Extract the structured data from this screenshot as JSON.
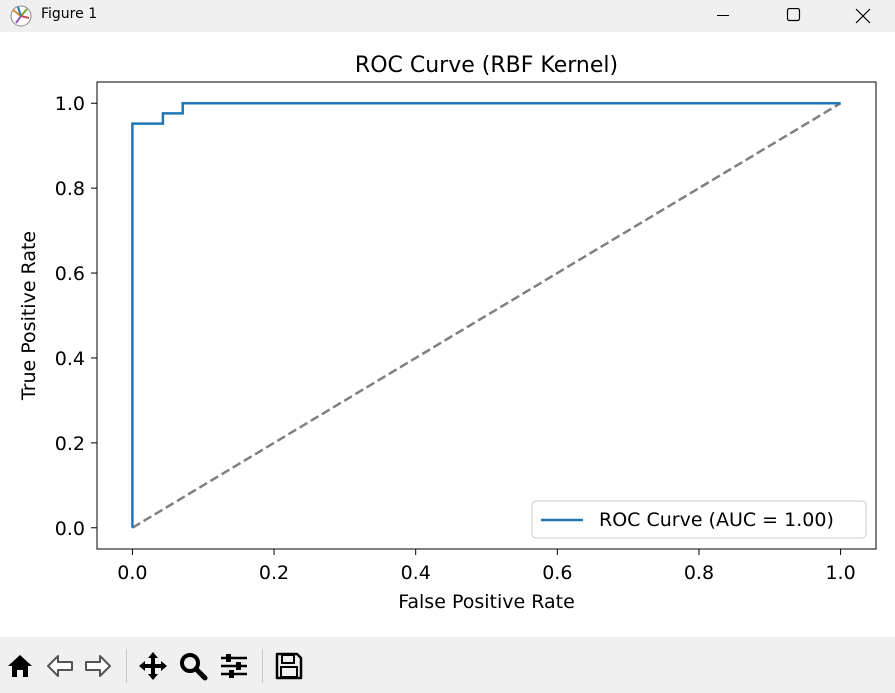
{
  "window": {
    "title": "Figure 1",
    "controls": [
      "minimize",
      "maximize",
      "close"
    ]
  },
  "toolbar": {
    "buttons": [
      "home-icon",
      "back-arrow-icon",
      "forward-arrow-icon",
      "pan-icon",
      "zoom-icon",
      "configure-subplots-icon",
      "save-icon"
    ]
  },
  "chart_data": {
    "type": "line",
    "title": "ROC Curve (RBF Kernel)",
    "xlabel": "False Positive Rate",
    "ylabel": "True Positive Rate",
    "xlim": [
      -0.05,
      1.05
    ],
    "ylim": [
      -0.05,
      1.05
    ],
    "xticks": [
      0.0,
      0.2,
      0.4,
      0.6,
      0.8,
      1.0
    ],
    "yticks": [
      0.0,
      0.2,
      0.4,
      0.6,
      0.8,
      1.0
    ],
    "xtick_labels": [
      "0.0",
      "0.2",
      "0.4",
      "0.6",
      "0.8",
      "1.0"
    ],
    "ytick_labels": [
      "0.0",
      "0.2",
      "0.4",
      "0.6",
      "0.8",
      "1.0"
    ],
    "grid": false,
    "legend_position": "lower-right",
    "series": [
      {
        "name": "ROC Curve (AUC = 1.00)",
        "color": "#1f77b4",
        "style": "solid",
        "x": [
          0.0,
          0.0,
          0.0,
          0.043,
          0.043,
          0.071,
          0.071,
          1.0
        ],
        "y": [
          0.0,
          0.952,
          0.952,
          0.952,
          0.976,
          0.976,
          1.0,
          1.0
        ]
      },
      {
        "color": "#808080",
        "style": "dashed",
        "x": [
          0.0,
          1.0
        ],
        "y": [
          0.0,
          1.0
        ]
      }
    ]
  }
}
